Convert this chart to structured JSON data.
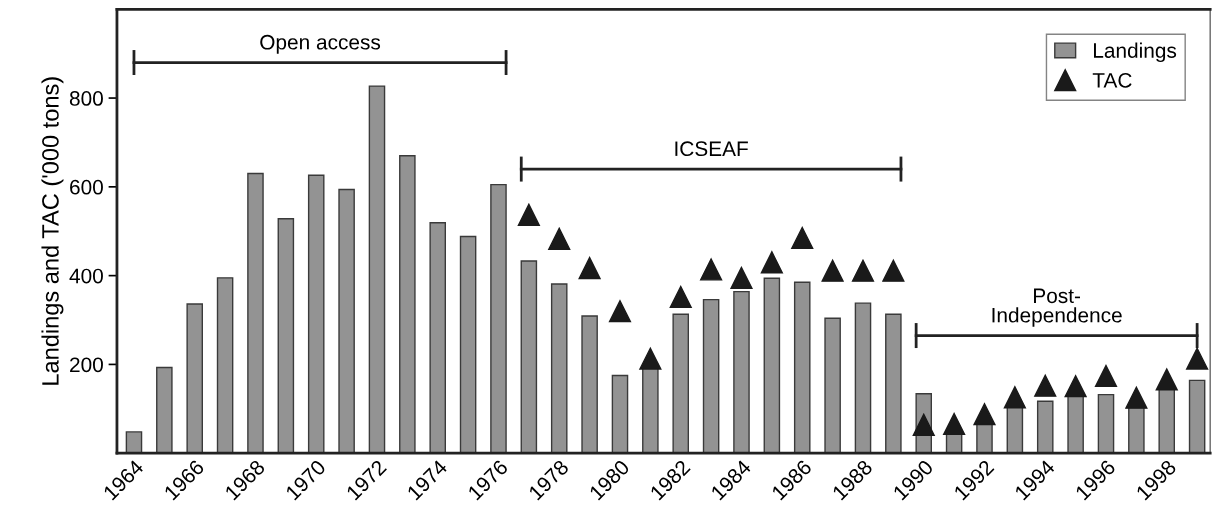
{
  "chart_data": {
    "type": "bar",
    "ylabel": "Landings and TAC ('000 tons)",
    "categories": [
      "1964",
      null,
      "1966",
      null,
      "1968",
      null,
      "1970",
      null,
      "1972",
      null,
      "1974",
      null,
      "1976",
      null,
      "1978",
      null,
      "1980",
      null,
      "1982",
      null,
      "1984",
      null,
      "1986",
      null,
      "1988",
      null,
      "1990",
      null,
      "1992",
      null,
      "1994",
      null,
      "1996",
      null,
      "1998",
      null
    ],
    "series": [
      {
        "name": "Landings",
        "color": "#939393",
        "values": [
          48,
          193,
          336,
          395,
          630,
          528,
          626,
          594,
          827,
          670,
          519,
          488,
          605,
          433,
          381,
          309,
          175,
          194,
          313,
          346,
          364,
          394,
          385,
          304,
          338,
          313,
          134,
          48,
          72,
          106,
          117,
          130,
          132,
          106,
          147,
          164
        ]
      },
      {
        "name": "TAC",
        "type": "scatter",
        "color": "#1a1a1a",
        "marker": "triangle",
        "values": [
          null,
          null,
          null,
          null,
          null,
          null,
          null,
          null,
          null,
          null,
          null,
          null,
          null,
          537,
          483,
          417,
          320,
          213,
          352,
          414,
          395,
          430,
          485,
          411,
          411,
          411,
          64,
          66,
          88,
          126,
          152,
          151,
          174,
          125,
          166,
          213
        ]
      }
    ],
    "ylim": [
      0,
      1000
    ],
    "yticks": [
      200,
      400,
      600,
      800
    ],
    "annotations": [
      "Open access",
      "ICSEAF",
      "Post-\nIndependence"
    ],
    "grid": false,
    "legend": "top right"
  }
}
